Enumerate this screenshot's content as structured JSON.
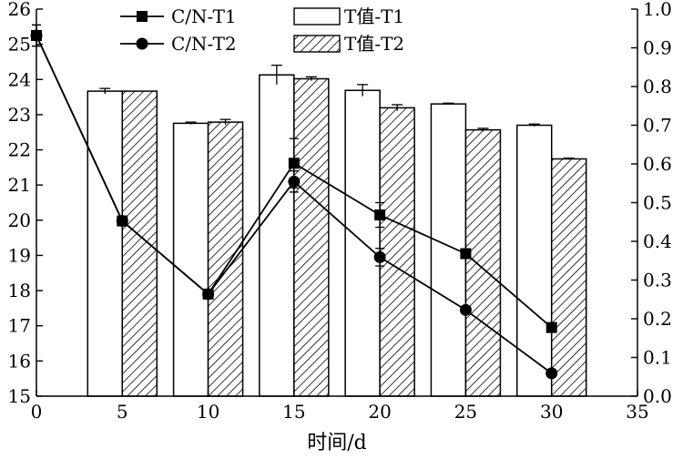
{
  "chart_data": {
    "type": "bar",
    "title": "",
    "xlabel": "时间/d",
    "ylabel_left": "",
    "ylabel_right": "",
    "x_axis": {
      "range": [
        0,
        35
      ],
      "ticks": [
        0,
        5,
        10,
        15,
        20,
        25,
        30,
        35
      ]
    },
    "y_left": {
      "range": [
        15,
        26
      ],
      "ticks": [
        15,
        16,
        17,
        18,
        19,
        20,
        21,
        22,
        23,
        24,
        25,
        26
      ]
    },
    "y_right": {
      "range": [
        0,
        1.0
      ],
      "ticks": [
        0.0,
        0.1,
        0.2,
        0.3,
        0.4,
        0.5,
        0.6,
        0.7,
        0.8,
        0.9,
        1.0
      ],
      "tick_labels": [
        "0.0",
        "0.1",
        "0.2",
        "0.3",
        "0.4",
        "0.5",
        "0.6",
        "0.7",
        "0.8",
        "0.9",
        "1.0"
      ]
    },
    "bar_series": [
      {
        "name": "T值-T1",
        "axis": "right",
        "style": "hollow",
        "x": [
          5,
          10,
          15,
          20,
          25,
          30
        ],
        "values": [
          0.788,
          0.705,
          0.83,
          0.79,
          0.755,
          0.7
        ],
        "errors": [
          0.007,
          0.003,
          0.025,
          0.015,
          0.002,
          0.003
        ]
      },
      {
        "name": "T值-T2",
        "axis": "right",
        "style": "hatched",
        "x": [
          5,
          10,
          15,
          20,
          25,
          30
        ],
        "values": [
          0.788,
          0.708,
          0.82,
          0.745,
          0.688,
          0.613
        ],
        "errors": [
          0.0,
          0.007,
          0.005,
          0.008,
          0.004,
          0.002
        ]
      }
    ],
    "line_series": [
      {
        "name": "C/N-T1",
        "axis": "left",
        "marker": "square",
        "x": [
          0,
          5,
          10,
          15,
          20,
          25,
          30
        ],
        "values": [
          25.25,
          19.98,
          17.9,
          21.62,
          20.15,
          19.05,
          16.95
        ],
        "errors": [
          0.3,
          0.1,
          0.1,
          0.7,
          0.35,
          0.1,
          0.1
        ]
      },
      {
        "name": "C/N-T2",
        "axis": "left",
        "marker": "circle",
        "x": [
          0,
          5,
          10,
          15,
          20,
          25,
          30
        ],
        "values": [
          25.25,
          19.98,
          17.9,
          21.1,
          18.95,
          17.45,
          15.65
        ],
        "errors": [
          0.3,
          0.1,
          0.1,
          0.3,
          0.25,
          0.1,
          0.1
        ]
      }
    ],
    "legend": {
      "placement": "top",
      "entries": [
        "C/N-T1",
        "C/N-T2",
        "T值-T1",
        "T值-T2"
      ]
    }
  }
}
